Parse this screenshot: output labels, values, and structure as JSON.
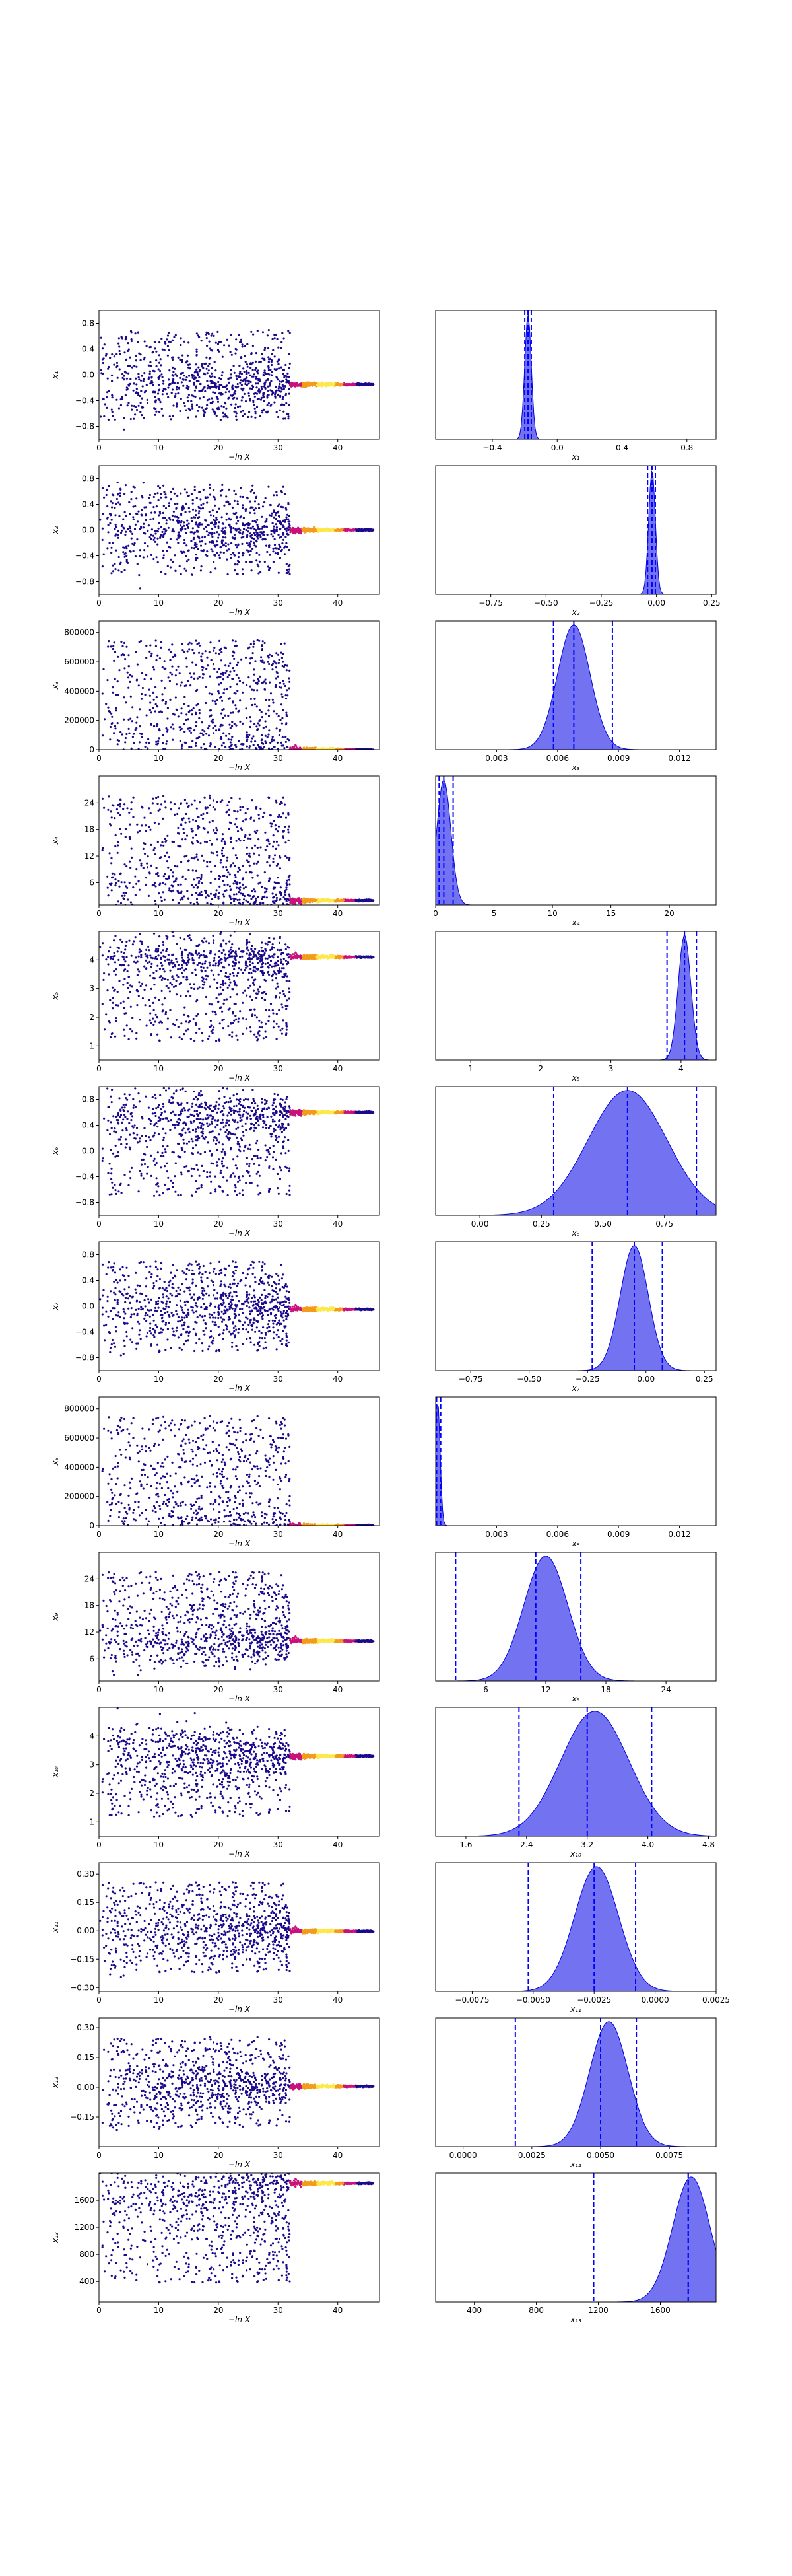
{
  "colors": {
    "scatter_low": "#1a0a8c",
    "scatter_high_a": "#c8127a",
    "scatter_high_b": "#f39b1b",
    "scatter_high_c": "#fde84a",
    "kde_fill": "#5a5af0",
    "kde_line": "#0000dd",
    "interval_line": "#0000ff",
    "axes": "#000000"
  },
  "chart_data": [
    {
      "parameter": "x1",
      "scatter": {
        "type": "scatter",
        "xlabel": "−ln X",
        "ylabel": "x₁",
        "xlim": [
          0,
          47
        ],
        "ylim": [
          -1.0,
          1.0
        ],
        "xticks": [
          0,
          10,
          20,
          30,
          40
        ],
        "yticks": [
          -0.8,
          -0.4,
          0.0,
          0.4,
          0.8
        ],
        "ytick_labels": [
          "−0.8",
          "−0.4",
          "0.0",
          "0.4",
          "0.8"
        ],
        "converged_value": -0.15
      },
      "kde": {
        "type": "area",
        "xlabel": "x₁",
        "xlim": [
          -0.75,
          0.98
        ],
        "xticks": [
          -0.4,
          0.0,
          0.4,
          0.8
        ],
        "xtick_labels": [
          "−0.4",
          "0.0",
          "0.4",
          "0.8"
        ],
        "peak": -0.18,
        "width": 0.02,
        "interval": [
          -0.2,
          -0.16
        ],
        "median": -0.18
      }
    },
    {
      "parameter": "x2",
      "scatter": {
        "type": "scatter",
        "xlabel": "−ln X",
        "ylabel": "x₂",
        "xlim": [
          0,
          47
        ],
        "ylim": [
          -1.0,
          1.0
        ],
        "xticks": [
          0,
          10,
          20,
          30,
          40
        ],
        "yticks": [
          -0.8,
          -0.4,
          0.0,
          0.4,
          0.8
        ],
        "ytick_labels": [
          "−0.8",
          "−0.4",
          "0.0",
          "0.4",
          "0.8"
        ],
        "converged_value": 0.0
      },
      "kde": {
        "type": "area",
        "xlabel": "x₂",
        "xlim": [
          -1.0,
          0.27
        ],
        "xticks": [
          -0.75,
          -0.5,
          -0.25,
          0.0,
          0.25
        ],
        "xtick_labels": [
          "−0.75",
          "−0.50",
          "−0.25",
          "0.00",
          "0.25"
        ],
        "peak": -0.02,
        "width": 0.015,
        "interval": [
          -0.04,
          -0.005
        ],
        "median": -0.02
      }
    },
    {
      "parameter": "x3",
      "scatter": {
        "type": "scatter",
        "xlabel": "−ln X",
        "ylabel": "x₃",
        "xlim": [
          0,
          47
        ],
        "ylim": [
          0,
          880000
        ],
        "xticks": [
          0,
          10,
          20,
          30,
          40
        ],
        "yticks": [
          0,
          200000,
          400000,
          600000,
          800000
        ],
        "ytick_labels": [
          "0",
          "200000",
          "400000",
          "600000",
          "800000"
        ],
        "converged_value": 0.007
      },
      "kde": {
        "type": "area",
        "xlabel": "x₃",
        "xlim": [
          0,
          0.0138
        ],
        "xticks": [
          0.003,
          0.006,
          0.009,
          0.012
        ],
        "xtick_labels": [
          "0.003",
          "0.006",
          "0.009",
          "0.012"
        ],
        "peak": 0.0068,
        "width": 0.0008,
        "interval": [
          0.0058,
          0.0087
        ],
        "median": 0.0068
      }
    },
    {
      "parameter": "x4",
      "scatter": {
        "type": "scatter",
        "xlabel": "−ln X",
        "ylabel": "x₄",
        "xlim": [
          0,
          47
        ],
        "ylim": [
          1,
          30
        ],
        "xticks": [
          0,
          10,
          20,
          30,
          40
        ],
        "yticks": [
          6,
          12,
          18,
          24
        ],
        "ytick_labels": [
          "6",
          "12",
          "18",
          "24"
        ],
        "converged_value": 2.0
      },
      "kde": {
        "type": "area",
        "xlabel": "x₄",
        "xlim": [
          0,
          24
        ],
        "xticks": [
          0,
          5,
          10,
          15,
          20
        ],
        "xtick_labels": [
          "0",
          "5",
          "10",
          "15",
          "20"
        ],
        "peak": 0.7,
        "width": 0.6,
        "interval": [
          0.3,
          1.5
        ],
        "median": 0.7
      }
    },
    {
      "parameter": "x5",
      "scatter": {
        "type": "scatter",
        "xlabel": "−ln X",
        "ylabel": "x₅",
        "xlim": [
          0,
          47
        ],
        "ylim": [
          0.5,
          5.0
        ],
        "xticks": [
          0,
          10,
          20,
          30,
          40
        ],
        "yticks": [
          1,
          2,
          3,
          4
        ],
        "ytick_labels": [
          "1",
          "2",
          "3",
          "4"
        ],
        "converged_value": 4.1
      },
      "kde": {
        "type": "area",
        "xlabel": "x₅",
        "xlim": [
          0.5,
          4.5
        ],
        "xticks": [
          1,
          2,
          3,
          4
        ],
        "xtick_labels": [
          "1",
          "2",
          "3",
          "4"
        ],
        "peak": 4.05,
        "width": 0.09,
        "interval": [
          3.8,
          4.22
        ],
        "median": 4.05
      }
    },
    {
      "parameter": "x6",
      "scatter": {
        "type": "scatter",
        "xlabel": "−ln X",
        "ylabel": "x₆",
        "xlim": [
          0,
          47
        ],
        "ylim": [
          -1.0,
          1.0
        ],
        "xticks": [
          0,
          10,
          20,
          30,
          40
        ],
        "yticks": [
          -0.8,
          -0.4,
          0.0,
          0.4,
          0.8
        ],
        "ytick_labels": [
          "−0.8",
          "−0.4",
          "0.0",
          "0.4",
          "0.8"
        ],
        "converged_value": 0.6
      },
      "kde": {
        "type": "area",
        "xlabel": "x₆",
        "xlim": [
          -0.18,
          0.96
        ],
        "xticks": [
          0.0,
          0.25,
          0.5,
          0.75
        ],
        "xtick_labels": [
          "0.00",
          "0.25",
          "0.50",
          "0.75"
        ],
        "peak": 0.6,
        "width": 0.16,
        "interval": [
          0.3,
          0.88
        ],
        "median": 0.6
      }
    },
    {
      "parameter": "x7",
      "scatter": {
        "type": "scatter",
        "xlabel": "−ln X",
        "ylabel": "x₇",
        "xlim": [
          0,
          47
        ],
        "ylim": [
          -1.0,
          1.0
        ],
        "xticks": [
          0,
          10,
          20,
          30,
          40
        ],
        "yticks": [
          -0.8,
          -0.4,
          0.0,
          0.4,
          0.8
        ],
        "ytick_labels": [
          "−0.8",
          "−0.4",
          "0.0",
          "0.4",
          "0.8"
        ],
        "converged_value": -0.05
      },
      "kde": {
        "type": "area",
        "xlabel": "x₇",
        "xlim": [
          -0.9,
          0.3
        ],
        "xticks": [
          -0.75,
          -0.5,
          -0.25,
          0.0,
          0.25
        ],
        "xtick_labels": [
          "−0.75",
          "−0.50",
          "−0.25",
          "0.00",
          "0.25"
        ],
        "peak": -0.05,
        "width": 0.06,
        "interval": [
          -0.23,
          0.07
        ],
        "median": -0.05
      }
    },
    {
      "parameter": "x8",
      "scatter": {
        "type": "scatter",
        "xlabel": "−ln X",
        "ylabel": "x₈",
        "xlim": [
          0,
          47
        ],
        "ylim": [
          0,
          880000
        ],
        "xticks": [
          0,
          10,
          20,
          30,
          40
        ],
        "yticks": [
          0,
          200000,
          400000,
          600000,
          800000
        ],
        "ytick_labels": [
          "0",
          "200000",
          "400000",
          "600000",
          "800000"
        ],
        "converged_value": 0.001
      },
      "kde": {
        "type": "area",
        "xlabel": "x₈",
        "xlim": [
          0,
          0.0138
        ],
        "xticks": [
          0.003,
          0.006,
          0.009,
          0.012
        ],
        "xtick_labels": [
          "0.003",
          "0.006",
          "0.009",
          "0.012"
        ],
        "peak": 0.0001,
        "width": 0.00012,
        "interval": [
          2e-05,
          0.00025
        ],
        "median": 5e-05
      }
    },
    {
      "parameter": "x9",
      "scatter": {
        "type": "scatter",
        "xlabel": "−ln X",
        "ylabel": "x₉",
        "xlim": [
          0,
          47
        ],
        "ylim": [
          1,
          30
        ],
        "xticks": [
          0,
          10,
          20,
          30,
          40
        ],
        "yticks": [
          6,
          12,
          18,
          24
        ],
        "ytick_labels": [
          "6",
          "12",
          "18",
          "24"
        ],
        "converged_value": 10.0
      },
      "kde": {
        "type": "area",
        "xlabel": "x₉",
        "xlim": [
          1,
          29
        ],
        "xticks": [
          6,
          12,
          18,
          24
        ],
        "xtick_labels": [
          "6",
          "12",
          "18",
          "24"
        ],
        "peak": 12.0,
        "width": 2.2,
        "interval": [
          3,
          15.5
        ],
        "median": 11
      }
    },
    {
      "parameter": "x10",
      "scatter": {
        "type": "scatter",
        "xlabel": "−ln X",
        "ylabel": "x₁₀",
        "xlim": [
          0,
          47
        ],
        "ylim": [
          0.5,
          5.0
        ],
        "xticks": [
          0,
          10,
          20,
          30,
          40
        ],
        "yticks": [
          1,
          2,
          3,
          4
        ],
        "ytick_labels": [
          "1",
          "2",
          "3",
          "4"
        ],
        "converged_value": 3.3
      },
      "kde": {
        "type": "area",
        "xlabel": "x₁₀",
        "xlim": [
          1.2,
          4.9
        ],
        "xticks": [
          1.6,
          2.4,
          3.2,
          4.0,
          4.8
        ],
        "xtick_labels": [
          "1.6",
          "2.4",
          "3.2",
          "4.0",
          "4.8"
        ],
        "peak": 3.3,
        "width": 0.45,
        "interval": [
          2.3,
          4.05
        ],
        "median": 3.2
      }
    },
    {
      "parameter": "x11",
      "scatter": {
        "type": "scatter",
        "xlabel": "−ln X",
        "ylabel": "x₁₁",
        "xlim": [
          0,
          47
        ],
        "ylim": [
          -0.32,
          0.36
        ],
        "xticks": [
          0,
          10,
          20,
          30,
          40
        ],
        "yticks": [
          -0.3,
          -0.15,
          0.0,
          0.15,
          0.3
        ],
        "ytick_labels": [
          "−0.30",
          "−0.15",
          "0.00",
          "0.15",
          "0.30"
        ],
        "converged_value": -0.002
      },
      "kde": {
        "type": "area",
        "xlabel": "x₁₁",
        "xlim": [
          -0.009,
          0.0025
        ],
        "xticks": [
          -0.0075,
          -0.005,
          -0.0025,
          0.0,
          0.0025
        ],
        "xtick_labels": [
          "−0.0075",
          "−0.0050",
          "−0.0025",
          "0.0000",
          "0.0025"
        ],
        "peak": -0.0024,
        "width": 0.0009,
        "interval": [
          -0.0052,
          -0.0008
        ],
        "median": -0.0025
      }
    },
    {
      "parameter": "x12",
      "scatter": {
        "type": "scatter",
        "xlabel": "−ln X",
        "ylabel": "x₁₂",
        "xlim": [
          0,
          47
        ],
        "ylim": [
          -0.3,
          0.35
        ],
        "xticks": [
          0,
          10,
          20,
          30,
          40
        ],
        "yticks": [
          -0.15,
          0.0,
          0.15,
          0.3
        ],
        "ytick_labels": [
          "−0.15",
          "0.00",
          "0.15",
          "0.30"
        ],
        "converged_value": 0.005
      },
      "kde": {
        "type": "area",
        "xlabel": "x₁₂",
        "xlim": [
          -0.001,
          0.0092
        ],
        "xticks": [
          0.0,
          0.0025,
          0.005,
          0.0075
        ],
        "xtick_labels": [
          "0.0000",
          "0.0025",
          "0.0050",
          "0.0075"
        ],
        "peak": 0.0053,
        "width": 0.0007,
        "interval": [
          0.0019,
          0.0063
        ],
        "median": 0.005
      }
    },
    {
      "parameter": "x13",
      "scatter": {
        "type": "scatter",
        "xlabel": "−ln X",
        "ylabel": "x₁₃",
        "xlim": [
          0,
          47
        ],
        "ylim": [
          100,
          2000
        ],
        "xticks": [
          0,
          10,
          20,
          30,
          40
        ],
        "yticks": [
          400,
          800,
          1200,
          1600
        ],
        "ytick_labels": [
          "400",
          "800",
          "1200",
          "1600"
        ],
        "converged_value": 1850
      },
      "kde": {
        "type": "area",
        "xlabel": "x₁₃",
        "xlim": [
          150,
          1960
        ],
        "xticks": [
          400,
          800,
          1200,
          1600
        ],
        "xtick_labels": [
          "400",
          "800",
          "1200",
          "1600"
        ],
        "peak": 1800,
        "width": 120,
        "interval": [
          1170,
          1780
        ],
        "median": 1780
      }
    }
  ]
}
